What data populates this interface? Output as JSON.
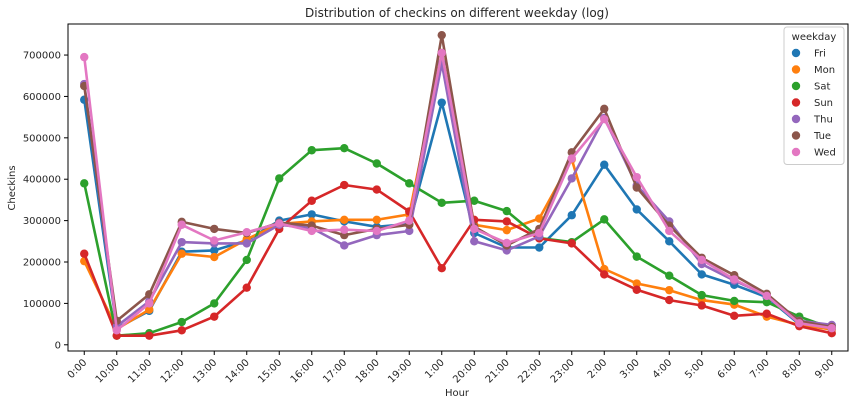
{
  "chart_data": {
    "type": "line",
    "title": "Distribution of checkins on different weekday (log)",
    "xlabel": "Hour",
    "ylabel": "Checkins",
    "categories": [
      "0:00",
      "10:00",
      "11:00",
      "12:00",
      "13:00",
      "14:00",
      "15:00",
      "16:00",
      "17:00",
      "18:00",
      "19:00",
      "1:00",
      "20:00",
      "21:00",
      "22:00",
      "23:00",
      "2:00",
      "3:00",
      "4:00",
      "5:00",
      "6:00",
      "7:00",
      "8:00",
      "9:00"
    ],
    "ylim": [
      -15000,
      775000
    ],
    "yticks": [
      0,
      100000,
      200000,
      300000,
      400000,
      500000,
      600000,
      700000
    ],
    "ytick_labels": [
      "0",
      "100000",
      "200000",
      "300000",
      "400000",
      "500000",
      "600000",
      "700000"
    ],
    "grid": false,
    "legend": {
      "title": "weekday",
      "position": "top-right"
    },
    "series": [
      {
        "name": "Fri",
        "color": "#1f77b4",
        "values": [
          592000,
          40000,
          82000,
          225000,
          228000,
          252000,
          300000,
          315000,
          298000,
          285000,
          292000,
          585000,
          270000,
          235000,
          235000,
          313000,
          435000,
          327000,
          250000,
          170000,
          145000,
          115000,
          50000,
          40000
        ]
      },
      {
        "name": "Mon",
        "color": "#ff7f0e",
        "values": [
          202000,
          38000,
          85000,
          220000,
          212000,
          255000,
          292000,
          298000,
          302000,
          302000,
          315000,
          705000,
          290000,
          277000,
          305000,
          448000,
          183000,
          148000,
          132000,
          108000,
          97000,
          68000,
          48000,
          37000
        ]
      },
      {
        "name": "Sat",
        "color": "#2ca02c",
        "values": [
          390000,
          22000,
          28000,
          55000,
          100000,
          205000,
          402000,
          470000,
          475000,
          438000,
          390000,
          343000,
          348000,
          323000,
          258000,
          248000,
          303000,
          213000,
          167000,
          120000,
          106000,
          103000,
          68000,
          40000
        ]
      },
      {
        "name": "Sun",
        "color": "#d62728",
        "values": [
          220000,
          22000,
          22000,
          35000,
          68000,
          138000,
          280000,
          348000,
          386000,
          375000,
          322000,
          185000,
          302000,
          298000,
          257000,
          245000,
          170000,
          133000,
          108000,
          95000,
          70000,
          75000,
          45000,
          28000
        ]
      },
      {
        "name": "Thu",
        "color": "#9467bd",
        "values": [
          630000,
          45000,
          105000,
          248000,
          245000,
          245000,
          290000,
          282000,
          240000,
          265000,
          275000,
          680000,
          250000,
          228000,
          262000,
          402000,
          548000,
          385000,
          298000,
          195000,
          155000,
          120000,
          58000,
          48000
        ]
      },
      {
        "name": "Tue",
        "color": "#8c564b",
        "values": [
          625000,
          58000,
          122000,
          297000,
          280000,
          270000,
          295000,
          288000,
          265000,
          280000,
          290000,
          748000,
          285000,
          240000,
          280000,
          465000,
          570000,
          380000,
          288000,
          210000,
          168000,
          123000,
          57000,
          43000
        ]
      },
      {
        "name": "Wed",
        "color": "#e377c2",
        "values": [
          695000,
          35000,
          100000,
          290000,
          252000,
          272000,
          293000,
          275000,
          278000,
          275000,
          300000,
          705000,
          280000,
          246000,
          270000,
          450000,
          545000,
          405000,
          275000,
          205000,
          158000,
          118000,
          52000,
          40000
        ]
      }
    ]
  }
}
